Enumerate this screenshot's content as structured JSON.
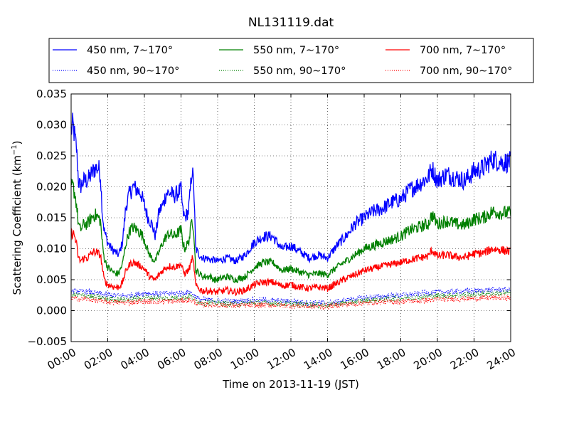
{
  "chart_data": {
    "type": "line",
    "title": "NL131119.dat",
    "xlabel": "Time on 2013-11-19 (JST)",
    "ylabel_main": "Scattering Coefficient (km",
    "ylabel_sup": "−1",
    "ylabel_close": ")",
    "xlim": [
      0,
      24
    ],
    "ylim": [
      -0.005,
      0.035
    ],
    "x_tick_values": [
      0,
      2,
      4,
      6,
      8,
      10,
      12,
      14,
      16,
      18,
      20,
      22,
      24
    ],
    "x_tick_labels": [
      "00:00",
      "02:00",
      "04:00",
      "06:00",
      "08:00",
      "10:00",
      "12:00",
      "14:00",
      "16:00",
      "18:00",
      "20:00",
      "22:00",
      "24:00"
    ],
    "y_tick_values": [
      -0.005,
      0.0,
      0.005,
      0.01,
      0.015,
      0.02,
      0.025,
      0.03,
      0.035
    ],
    "y_tick_labels": [
      "−0.005",
      "0.000",
      "0.005",
      "0.010",
      "0.015",
      "0.020",
      "0.025",
      "0.030",
      "0.035"
    ],
    "grid": true,
    "legend_position": "top",
    "series": [
      {
        "name": "450 nm, 7∼170°",
        "color": "#0000ff",
        "style": "solid",
        "x": [
          0,
          0.1,
          0.2,
          0.3,
          0.4,
          0.5,
          0.7,
          0.9,
          1.1,
          1.3,
          1.5,
          1.6,
          1.7,
          1.8,
          2.0,
          2.2,
          2.4,
          2.6,
          2.8,
          3.0,
          3.2,
          3.4,
          3.6,
          3.8,
          4.0,
          4.2,
          4.4,
          4.6,
          4.8,
          5.0,
          5.2,
          5.4,
          5.6,
          5.8,
          6.0,
          6.1,
          6.2,
          6.4,
          6.5,
          6.6,
          6.7,
          6.8,
          7.0,
          7.2,
          7.4,
          7.6,
          7.8,
          8.0,
          8.5,
          9.0,
          9.5,
          10.0,
          10.5,
          11.0,
          11.5,
          12.0,
          12.5,
          13.0,
          13.5,
          14.0,
          14.5,
          15.0,
          15.5,
          16.0,
          16.5,
          17.0,
          17.5,
          18.0,
          18.5,
          19.0,
          19.5,
          19.7,
          20.0,
          20.5,
          21.0,
          21.5,
          22.0,
          22.5,
          23.0,
          23.5,
          24.0
        ],
        "y": [
          0.029,
          0.03,
          0.028,
          0.026,
          0.021,
          0.02,
          0.021,
          0.021,
          0.022,
          0.023,
          0.023,
          0.022,
          0.016,
          0.013,
          0.011,
          0.01,
          0.0095,
          0.009,
          0.011,
          0.017,
          0.019,
          0.02,
          0.0195,
          0.019,
          0.017,
          0.015,
          0.014,
          0.012,
          0.016,
          0.017,
          0.019,
          0.019,
          0.0185,
          0.019,
          0.0195,
          0.016,
          0.015,
          0.016,
          0.019,
          0.023,
          0.02,
          0.01,
          0.009,
          0.0085,
          0.0085,
          0.0082,
          0.0082,
          0.008,
          0.0085,
          0.008,
          0.009,
          0.011,
          0.012,
          0.012,
          0.01,
          0.0105,
          0.0095,
          0.0085,
          0.009,
          0.0085,
          0.0105,
          0.012,
          0.014,
          0.015,
          0.016,
          0.0165,
          0.0175,
          0.018,
          0.0195,
          0.0205,
          0.0215,
          0.023,
          0.021,
          0.022,
          0.0215,
          0.021,
          0.0225,
          0.023,
          0.0245,
          0.024,
          0.024
        ]
      },
      {
        "name": "550 nm, 7∼170°",
        "color": "#008000",
        "style": "solid",
        "x": [
          0,
          0.1,
          0.2,
          0.3,
          0.4,
          0.5,
          0.7,
          0.9,
          1.1,
          1.3,
          1.5,
          1.6,
          1.7,
          1.8,
          2.0,
          2.2,
          2.4,
          2.6,
          2.8,
          3.0,
          3.2,
          3.4,
          3.6,
          3.8,
          4.0,
          4.2,
          4.4,
          4.6,
          4.8,
          5.0,
          5.2,
          5.4,
          5.6,
          5.8,
          6.0,
          6.1,
          6.2,
          6.4,
          6.5,
          6.6,
          6.7,
          6.8,
          7.0,
          7.2,
          7.4,
          7.6,
          7.8,
          8.0,
          8.5,
          9.0,
          9.5,
          10.0,
          10.5,
          11.0,
          11.5,
          12.0,
          12.5,
          13.0,
          13.5,
          14.0,
          14.5,
          15.0,
          15.5,
          16.0,
          16.5,
          17.0,
          17.5,
          18.0,
          18.5,
          19.0,
          19.5,
          19.7,
          20.0,
          20.5,
          21.0,
          21.5,
          22.0,
          22.5,
          23.0,
          23.5,
          24.0
        ],
        "y": [
          0.02,
          0.02,
          0.019,
          0.017,
          0.014,
          0.013,
          0.014,
          0.014,
          0.015,
          0.0155,
          0.015,
          0.0145,
          0.011,
          0.0085,
          0.007,
          0.0065,
          0.006,
          0.006,
          0.0075,
          0.011,
          0.013,
          0.0135,
          0.013,
          0.0125,
          0.0115,
          0.0095,
          0.0085,
          0.008,
          0.0095,
          0.011,
          0.012,
          0.0125,
          0.012,
          0.0125,
          0.013,
          0.011,
          0.01,
          0.011,
          0.0125,
          0.015,
          0.013,
          0.0065,
          0.006,
          0.0055,
          0.0055,
          0.0055,
          0.005,
          0.005,
          0.0055,
          0.005,
          0.0055,
          0.007,
          0.0078,
          0.0078,
          0.0065,
          0.0068,
          0.0062,
          0.0058,
          0.006,
          0.0058,
          0.007,
          0.008,
          0.009,
          0.01,
          0.0105,
          0.011,
          0.0115,
          0.012,
          0.013,
          0.0135,
          0.014,
          0.0155,
          0.014,
          0.0145,
          0.014,
          0.0138,
          0.0148,
          0.015,
          0.016,
          0.0158,
          0.0158
        ]
      },
      {
        "name": "700 nm, 7∼170°",
        "color": "#ff0000",
        "style": "solid",
        "x": [
          0,
          0.1,
          0.2,
          0.3,
          0.4,
          0.5,
          0.7,
          0.9,
          1.1,
          1.3,
          1.5,
          1.6,
          1.7,
          1.8,
          2.0,
          2.2,
          2.4,
          2.6,
          2.8,
          3.0,
          3.2,
          3.4,
          3.6,
          3.8,
          4.0,
          4.2,
          4.4,
          4.6,
          4.8,
          5.0,
          5.2,
          5.4,
          5.6,
          5.8,
          6.0,
          6.1,
          6.2,
          6.4,
          6.5,
          6.6,
          6.7,
          6.8,
          7.0,
          7.2,
          7.4,
          7.6,
          7.8,
          8.0,
          8.5,
          9.0,
          9.5,
          10.0,
          10.5,
          11.0,
          11.5,
          12.0,
          12.5,
          13.0,
          13.5,
          14.0,
          14.5,
          15.0,
          15.5,
          16.0,
          16.5,
          17.0,
          17.5,
          18.0,
          18.5,
          19.0,
          19.5,
          19.7,
          20.0,
          20.5,
          21.0,
          21.5,
          22.0,
          22.5,
          23.0,
          23.5,
          24.0
        ],
        "y": [
          0.0125,
          0.0125,
          0.012,
          0.0105,
          0.0085,
          0.008,
          0.0085,
          0.0085,
          0.0092,
          0.0095,
          0.0092,
          0.009,
          0.007,
          0.005,
          0.0042,
          0.004,
          0.0038,
          0.0038,
          0.0045,
          0.0065,
          0.0075,
          0.0078,
          0.0075,
          0.0072,
          0.0068,
          0.0058,
          0.0052,
          0.005,
          0.0058,
          0.0065,
          0.007,
          0.0072,
          0.007,
          0.0072,
          0.0075,
          0.0065,
          0.006,
          0.0065,
          0.0072,
          0.0085,
          0.0075,
          0.004,
          0.0035,
          0.0032,
          0.0032,
          0.0032,
          0.003,
          0.003,
          0.0033,
          0.003,
          0.0033,
          0.0042,
          0.0046,
          0.0046,
          0.004,
          0.0042,
          0.0038,
          0.0036,
          0.0038,
          0.0036,
          0.0044,
          0.0052,
          0.0058,
          0.0065,
          0.0068,
          0.0072,
          0.0075,
          0.0078,
          0.0082,
          0.0085,
          0.0088,
          0.0098,
          0.0088,
          0.009,
          0.0087,
          0.0086,
          0.0092,
          0.0093,
          0.01,
          0.0098,
          0.0095
        ]
      },
      {
        "name": "450 nm, 90∼170°",
        "color": "#0000ff",
        "style": "dotted",
        "x": [
          0,
          1,
          2,
          3,
          4,
          5,
          6,
          6.5,
          7,
          8,
          9,
          10,
          11,
          12,
          13,
          14,
          15,
          16,
          17,
          18,
          19,
          20,
          21,
          22,
          23,
          24
        ],
        "y": [
          0.0032,
          0.003,
          0.0025,
          0.0024,
          0.0028,
          0.0027,
          0.0028,
          0.003,
          0.0018,
          0.0016,
          0.0015,
          0.0017,
          0.0016,
          0.0015,
          0.0013,
          0.0012,
          0.0017,
          0.0021,
          0.0023,
          0.0025,
          0.0027,
          0.003,
          0.0031,
          0.0032,
          0.0034,
          0.0034
        ]
      },
      {
        "name": "550 nm, 90∼170°",
        "color": "#008000",
        "style": "dotted",
        "x": [
          0,
          1,
          2,
          3,
          4,
          5,
          6,
          6.5,
          7,
          8,
          9,
          10,
          11,
          12,
          13,
          14,
          15,
          16,
          17,
          18,
          19,
          20,
          21,
          22,
          23,
          24
        ],
        "y": [
          0.0026,
          0.0024,
          0.0019,
          0.0018,
          0.0021,
          0.002,
          0.0021,
          0.0023,
          0.0014,
          0.0012,
          0.0011,
          0.0013,
          0.0012,
          0.0011,
          0.001,
          0.0009,
          0.0013,
          0.0016,
          0.0018,
          0.002,
          0.0022,
          0.0024,
          0.0025,
          0.0026,
          0.0028,
          0.0028
        ]
      },
      {
        "name": "700 nm, 90∼170°",
        "color": "#ff0000",
        "style": "dotted",
        "x": [
          0,
          1,
          2,
          3,
          4,
          5,
          6,
          6.5,
          7,
          8,
          9,
          10,
          11,
          12,
          13,
          14,
          15,
          16,
          17,
          18,
          19,
          20,
          21,
          22,
          23,
          24
        ],
        "y": [
          0.002,
          0.0018,
          0.0014,
          0.0013,
          0.0015,
          0.0015,
          0.0016,
          0.0017,
          0.001,
          0.0009,
          0.0008,
          0.0009,
          0.0009,
          0.0008,
          0.0007,
          0.0007,
          0.001,
          0.0012,
          0.0014,
          0.0015,
          0.0016,
          0.0018,
          0.0019,
          0.002,
          0.0021,
          0.0021
        ]
      }
    ]
  }
}
